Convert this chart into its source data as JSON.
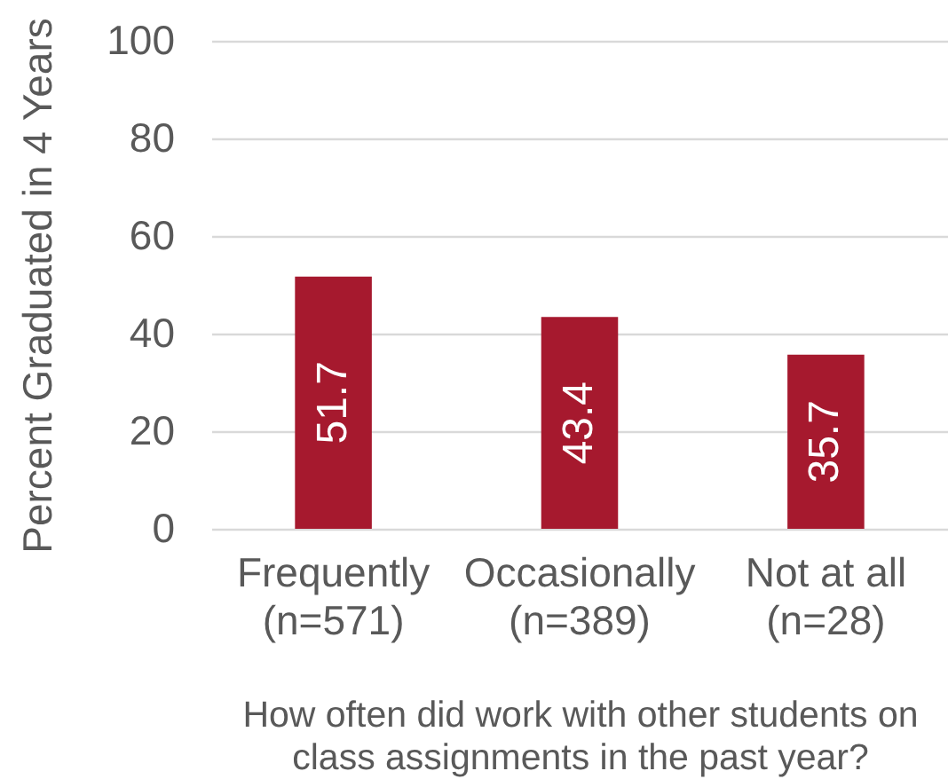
{
  "chart_data": {
    "type": "bar",
    "categories": [
      "Frequently\n(n=571)",
      "Occasionally\n(n=389)",
      "Not at all\n(n=28)"
    ],
    "values": [
      51.7,
      43.4,
      35.7
    ],
    "color": "#a6192e",
    "ylabel": "Percent Graduated in 4 Years",
    "xlabel": "How often did work with other students on\nclass assignments in the past year?",
    "ylim": [
      0,
      100
    ],
    "yticks": [
      0,
      20,
      40,
      60,
      80,
      100
    ],
    "grid": "y",
    "data_labels": true
  }
}
